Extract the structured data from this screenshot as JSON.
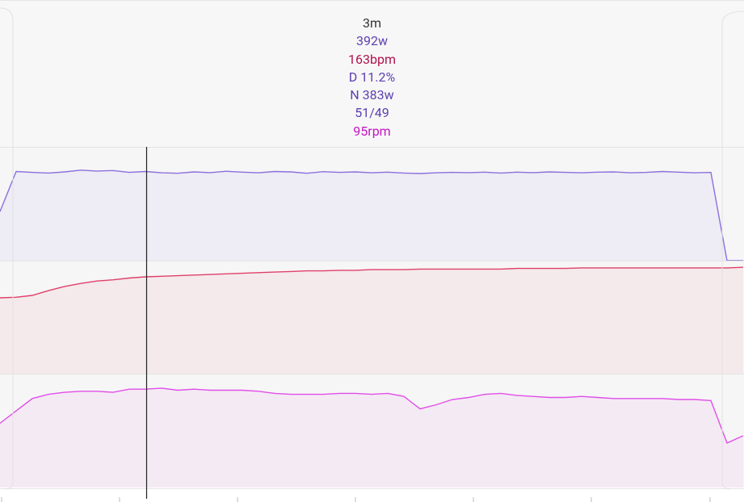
{
  "tooltip": {
    "time": "3m",
    "power": "392w",
    "heart_rate": "163bpm",
    "decoupling": "D 11.2%",
    "normalized": "N 383w",
    "balance": "51/49",
    "cadence": "95rpm"
  },
  "chart_data": [
    {
      "type": "area",
      "color": "#8d6fdc",
      "ylim": [
        0,
        500
      ],
      "values": [
        216,
        392,
        388,
        385,
        390,
        398,
        394,
        396,
        388,
        392,
        386,
        384,
        390,
        387,
        393,
        389,
        386,
        392,
        390,
        384,
        391,
        388,
        390,
        386,
        389,
        385,
        383,
        386,
        388,
        387,
        389,
        385,
        389,
        387,
        390,
        388,
        386,
        389,
        390,
        386,
        388,
        392,
        389,
        386,
        388,
        0,
        0
      ]
    },
    {
      "type": "area",
      "color": "#e0406a",
      "ylim": [
        0,
        190
      ],
      "values": [
        128,
        129,
        132,
        140,
        147,
        152,
        156,
        158,
        161,
        163,
        164,
        165,
        166,
        167,
        168,
        169,
        170,
        171,
        172,
        173,
        173,
        174,
        174,
        175,
        175,
        175,
        176,
        176,
        176,
        176,
        176,
        176,
        177,
        177,
        177,
        177,
        178,
        178,
        178,
        178,
        178,
        178,
        178,
        178,
        178,
        178,
        179
      ]
    },
    {
      "type": "area",
      "color": "#e04fe8",
      "ylim": [
        0,
        110
      ],
      "values": [
        62,
        74,
        86,
        90,
        92,
        93,
        93,
        92,
        95,
        95,
        96,
        94,
        95,
        94,
        94,
        94,
        93,
        91,
        90,
        90,
        90,
        91,
        91,
        90,
        91,
        88,
        76,
        80,
        85,
        87,
        90,
        91,
        89,
        88,
        87,
        87,
        88,
        87,
        86,
        86,
        86,
        86,
        85,
        85,
        84,
        43,
        50
      ]
    }
  ]
}
